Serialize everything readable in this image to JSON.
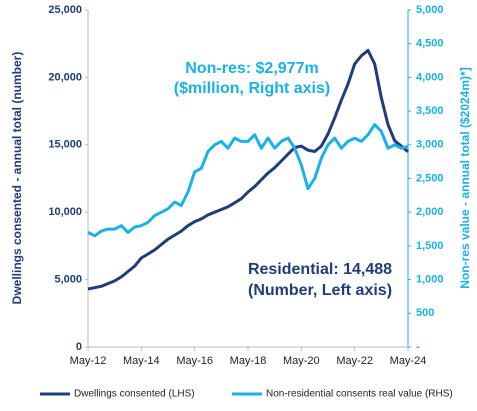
{
  "chart_data": {
    "type": "line",
    "annotations": [
      "Non-res: $2,977m",
      "($million, Right axis)",
      "Residential: 14,488",
      "(Number, Left axis)"
    ],
    "y_label": "Dwellings consented - annual total (number)",
    "y2_label": "Non-res value - annual total ($2024m)*]",
    "x": [
      0,
      3,
      6,
      9,
      12,
      15,
      18,
      21,
      24,
      27,
      30,
      33,
      36,
      39,
      42,
      45,
      48,
      51,
      54,
      57,
      60,
      63,
      66,
      69,
      72,
      75,
      78,
      81,
      84,
      87,
      90,
      93,
      96,
      99,
      102,
      105,
      108,
      111,
      114,
      117,
      120,
      123,
      126,
      129,
      132,
      135,
      138,
      141,
      144
    ],
    "xlim": [
      0,
      144
    ],
    "xticks": [
      {
        "value": 0,
        "label": "May-12"
      },
      {
        "value": 24,
        "label": "May-14"
      },
      {
        "value": 48,
        "label": "May-16"
      },
      {
        "value": 72,
        "label": "May-18"
      },
      {
        "value": 96,
        "label": "May-20"
      },
      {
        "value": 120,
        "label": "May-22"
      },
      {
        "value": 144,
        "label": "May-24"
      }
    ],
    "ylim": [
      0,
      25000
    ],
    "yticks": [
      0,
      {
        "value": 5000,
        "label": "5,000"
      },
      {
        "value": 10000,
        "label": "10,000"
      },
      {
        "value": 15000,
        "label": "15,000"
      },
      {
        "value": 20000,
        "label": "20,000"
      },
      {
        "value": 25000,
        "label": "25,000"
      }
    ],
    "y2lim": [
      0,
      5000
    ],
    "y2ticks": [
      {
        "value": 0,
        "label": "-"
      },
      500,
      {
        "value": 1000,
        "label": "1,000"
      },
      {
        "value": 1500,
        "label": "1,500"
      },
      {
        "value": 2000,
        "label": "2,000"
      },
      {
        "value": 2500,
        "label": "2,500"
      },
      {
        "value": 3000,
        "label": "3,000"
      },
      {
        "value": 3500,
        "label": "3,500"
      },
      {
        "value": 4000,
        "label": "4,000"
      },
      {
        "value": 4500,
        "label": "4,500"
      },
      {
        "value": 5000,
        "label": "5,000"
      }
    ],
    "series": [
      {
        "name": "Dwellings consented (LHS)",
        "color": "#1f3d7a",
        "values": [
          4300,
          4400,
          4500,
          4700,
          4900,
          5200,
          5600,
          6000,
          6600,
          6900,
          7200,
          7600,
          8000,
          8300,
          8600,
          9000,
          9300,
          9500,
          9800,
          10000,
          10200,
          10400,
          10700,
          11000,
          11500,
          11900,
          12400,
          12900,
          13300,
          13800,
          14300,
          14800,
          14900,
          14600,
          14500,
          14900,
          15800,
          17000,
          18300,
          19500,
          21000,
          21600,
          22000,
          21000,
          18500,
          16500,
          15300,
          14900,
          14488
        ]
      },
      {
        "name": "Non-residential consents real value (RHS)",
        "color": "#1ab0e8",
        "axis": "y2",
        "values": [
          1700,
          1650,
          1720,
          1750,
          1750,
          1800,
          1700,
          1780,
          1800,
          1850,
          1950,
          2000,
          2050,
          2150,
          2100,
          2300,
          2600,
          2650,
          2900,
          3000,
          3050,
          2950,
          3100,
          3050,
          3050,
          3150,
          2950,
          3100,
          2950,
          3050,
          3100,
          2950,
          2700,
          2350,
          2500,
          2800,
          3000,
          3100,
          2950,
          3050,
          3100,
          3050,
          3150,
          3300,
          3200,
          2950,
          3000,
          2950,
          2977
        ]
      }
    ]
  }
}
